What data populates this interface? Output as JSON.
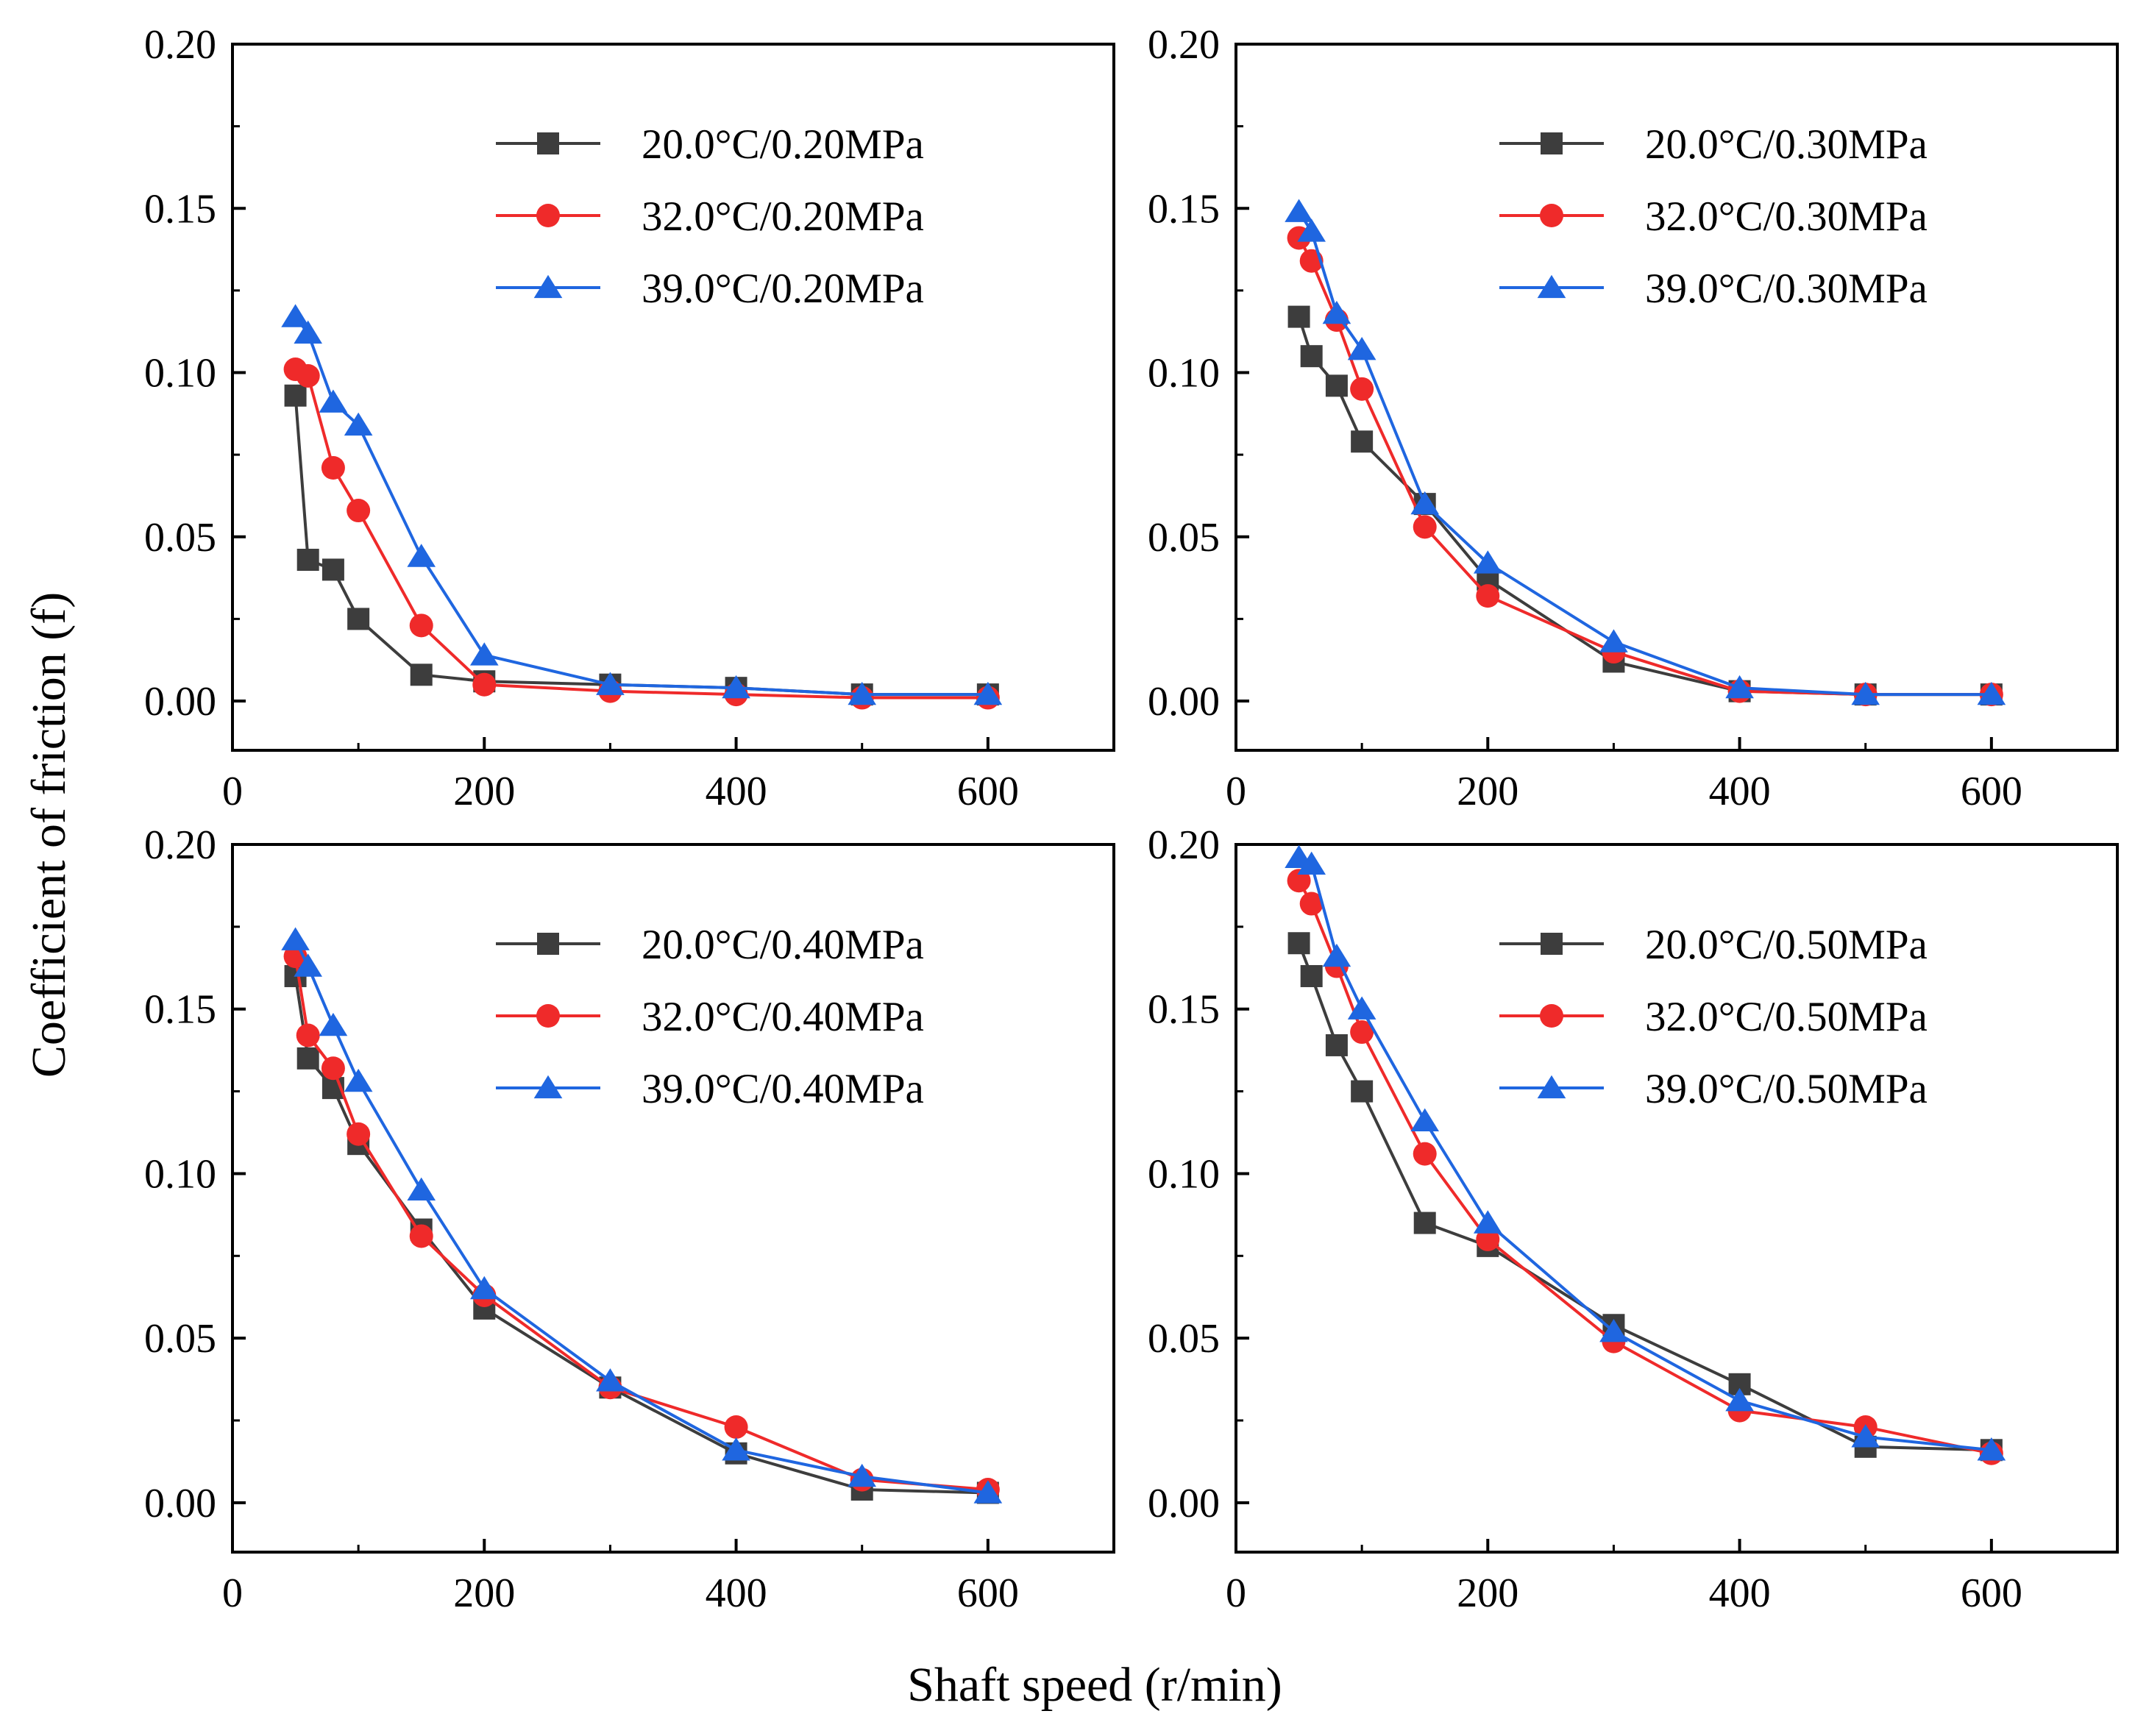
{
  "figure": {
    "shared_xlabel": "Shaft speed (r/min)",
    "shared_ylabel": "Coefficient of friction (f)"
  },
  "colors": {
    "series": [
      "#3d3d3d",
      "#ef2a2a",
      "#1f66e0"
    ],
    "axes": "#000000"
  },
  "chart_data": [
    {
      "type": "line",
      "panel": "top-left",
      "legend_position": "top-right",
      "xlim": [
        0,
        700
      ],
      "ylim": [
        -0.015,
        0.2
      ],
      "xticks": [
        0,
        200,
        400,
        600
      ],
      "xtick_labels": [
        "0",
        "200",
        "400",
        "600"
      ],
      "yticks": [
        0.0,
        0.05,
        0.1,
        0.15,
        0.2
      ],
      "ytick_labels": [
        "0.00",
        "0.05",
        "0.10",
        "0.15",
        "0.20"
      ],
      "x": [
        50,
        60,
        80,
        100,
        150,
        200,
        300,
        400,
        500,
        600
      ],
      "series": [
        {
          "name": "20.0°C/0.20MPa",
          "marker": "square",
          "values": [
            0.093,
            0.043,
            0.04,
            0.025,
            0.008,
            0.006,
            0.005,
            0.004,
            0.002,
            0.002
          ]
        },
        {
          "name": "32.0°C/0.20MPa",
          "marker": "circle",
          "values": [
            0.101,
            0.099,
            0.071,
            0.058,
            0.023,
            0.005,
            0.003,
            0.002,
            0.001,
            0.001
          ]
        },
        {
          "name": "39.0°C/0.20MPa",
          "marker": "triangle",
          "values": [
            0.117,
            0.112,
            0.091,
            0.084,
            0.044,
            0.014,
            0.005,
            0.004,
            0.002,
            0.002
          ]
        }
      ]
    },
    {
      "type": "line",
      "panel": "top-right",
      "legend_position": "top-right",
      "xlim": [
        0,
        700
      ],
      "ylim": [
        -0.015,
        0.2
      ],
      "xticks": [
        0,
        200,
        400,
        600
      ],
      "xtick_labels": [
        "0",
        "200",
        "400",
        "600"
      ],
      "yticks": [
        0.0,
        0.05,
        0.1,
        0.15,
        0.2
      ],
      "ytick_labels": [
        "0.00",
        "0.05",
        "0.10",
        "0.15",
        "0.20"
      ],
      "x": [
        50,
        60,
        80,
        100,
        150,
        200,
        300,
        400,
        500,
        600
      ],
      "series": [
        {
          "name": "20.0°C/0.30MPa",
          "marker": "square",
          "values": [
            0.117,
            0.105,
            0.096,
            0.079,
            0.06,
            0.037,
            0.012,
            0.003,
            0.002,
            0.002
          ]
        },
        {
          "name": "32.0°C/0.30MPa",
          "marker": "circle",
          "values": [
            0.141,
            0.134,
            0.116,
            0.095,
            0.053,
            0.032,
            0.015,
            0.003,
            0.002,
            0.002
          ]
        },
        {
          "name": "39.0°C/0.30MPa",
          "marker": "triangle",
          "values": [
            0.149,
            0.143,
            0.118,
            0.107,
            0.06,
            0.042,
            0.018,
            0.004,
            0.002,
            0.002
          ]
        }
      ]
    },
    {
      "type": "line",
      "panel": "bottom-left",
      "legend_position": "top-right",
      "xlim": [
        0,
        700
      ],
      "ylim": [
        -0.015,
        0.2
      ],
      "xticks": [
        0,
        200,
        400,
        600
      ],
      "xtick_labels": [
        "0",
        "200",
        "400",
        "600"
      ],
      "yticks": [
        0.0,
        0.05,
        0.1,
        0.15,
        0.2
      ],
      "ytick_labels": [
        "0.00",
        "0.05",
        "0.10",
        "0.15",
        "0.20"
      ],
      "x": [
        50,
        60,
        80,
        100,
        150,
        200,
        300,
        400,
        500,
        600
      ],
      "series": [
        {
          "name": "20.0°C/0.40MPa",
          "marker": "square",
          "values": [
            0.16,
            0.135,
            0.126,
            0.109,
            0.083,
            0.059,
            0.035,
            0.015,
            0.004,
            0.003
          ]
        },
        {
          "name": "32.0°C/0.40MPa",
          "marker": "circle",
          "values": [
            0.166,
            0.142,
            0.132,
            0.112,
            0.081,
            0.063,
            0.035,
            0.023,
            0.007,
            0.004
          ]
        },
        {
          "name": "39.0°C/0.40MPa",
          "marker": "triangle",
          "values": [
            0.171,
            0.163,
            0.145,
            0.128,
            0.095,
            0.065,
            0.037,
            0.016,
            0.008,
            0.003
          ]
        }
      ]
    },
    {
      "type": "line",
      "panel": "bottom-right",
      "legend_position": "top-right",
      "xlim": [
        0,
        700
      ],
      "ylim": [
        -0.015,
        0.2
      ],
      "xticks": [
        0,
        200,
        400,
        600
      ],
      "xtick_labels": [
        "0",
        "200",
        "400",
        "600"
      ],
      "yticks": [
        0.0,
        0.05,
        0.1,
        0.15,
        0.2
      ],
      "ytick_labels": [
        "0.00",
        "0.05",
        "0.10",
        "0.15",
        "0.20"
      ],
      "x": [
        50,
        60,
        80,
        100,
        150,
        200,
        300,
        400,
        500,
        600
      ],
      "series": [
        {
          "name": "20.0°C/0.50MPa",
          "marker": "square",
          "values": [
            0.17,
            0.16,
            0.139,
            0.125,
            0.085,
            0.078,
            0.054,
            0.036,
            0.017,
            0.016
          ]
        },
        {
          "name": "32.0°C/0.50MPa",
          "marker": "circle",
          "values": [
            0.189,
            0.182,
            0.163,
            0.143,
            0.106,
            0.08,
            0.049,
            0.028,
            0.023,
            0.015
          ]
        },
        {
          "name": "39.0°C/0.50MPa",
          "marker": "triangle",
          "values": [
            0.196,
            0.194,
            0.166,
            0.15,
            0.116,
            0.085,
            0.052,
            0.031,
            0.02,
            0.016
          ]
        }
      ]
    }
  ]
}
